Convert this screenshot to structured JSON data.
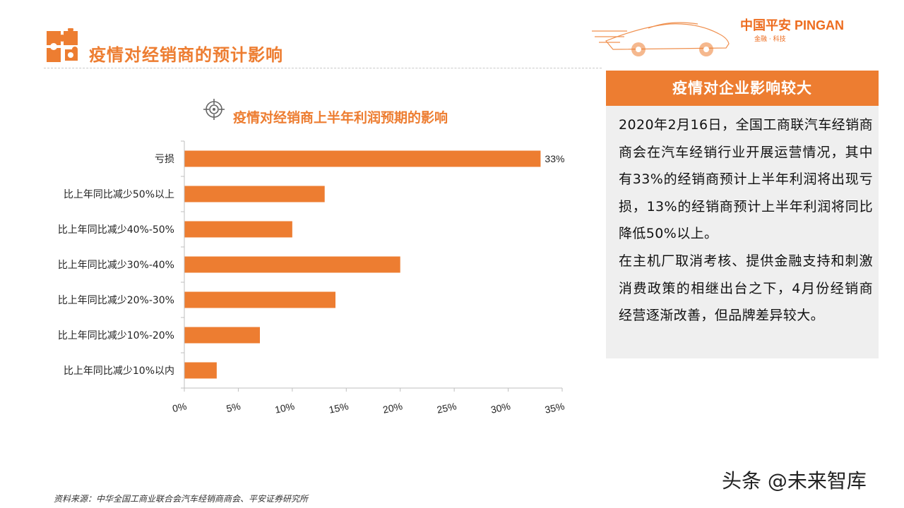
{
  "header": {
    "title": "疫情对经销商的预计影响",
    "logo_main": "中国平安 PINGAN",
    "logo_sub": "金融 · 科技"
  },
  "icons": {
    "title_icon": "puzzle-icon",
    "chart_icon": "target-icon",
    "car": "sports-car-graphic"
  },
  "colors": {
    "accent": "#ED7D31",
    "panel_bg": "#EFEFEF"
  },
  "chart_data": {
    "type": "bar",
    "orientation": "horizontal",
    "title": "疫情对经销商上半年利润预期的影响",
    "categories": [
      "亏损",
      "比上年同比减少50%以上",
      "比上年同比减少40%-50%",
      "比上年同比减少30%-40%",
      "比上年同比减少20%-30%",
      "比上年同比减少10%-20%",
      "比上年同比减少10%以内"
    ],
    "values": [
      33,
      13,
      10,
      20,
      14,
      7,
      3
    ],
    "data_labels": [
      "33%",
      "",
      "",
      "",
      "",
      "",
      ""
    ],
    "xlim": [
      0,
      35
    ],
    "x_ticks": [
      "0%",
      "5%",
      "10%",
      "15%",
      "20%",
      "25%",
      "30%",
      "35%"
    ],
    "bar_color": "#ED7D31",
    "grid": false,
    "legend": "none"
  },
  "panel": {
    "header": "疫情对企业影响较大",
    "paragraphs": [
      "2020年2月16日，全国工商联汽车经销商商会在汽车经销行业开展运营情况，其中有33%的经销商预计上半年利润将出现亏损，13%的经销商预计上半年利润将同比降低50%以上。",
      "在主机厂取消考核、提供金融支持和刺激消费政策的相继出台之下，4月份经销商经营逐渐改善，但品牌差异较大。"
    ]
  },
  "footer": {
    "source": "资料来源：中华全国工商业联合会汽车经销商商会、平安证券研究所",
    "watermark": "头条 @未来智库"
  }
}
